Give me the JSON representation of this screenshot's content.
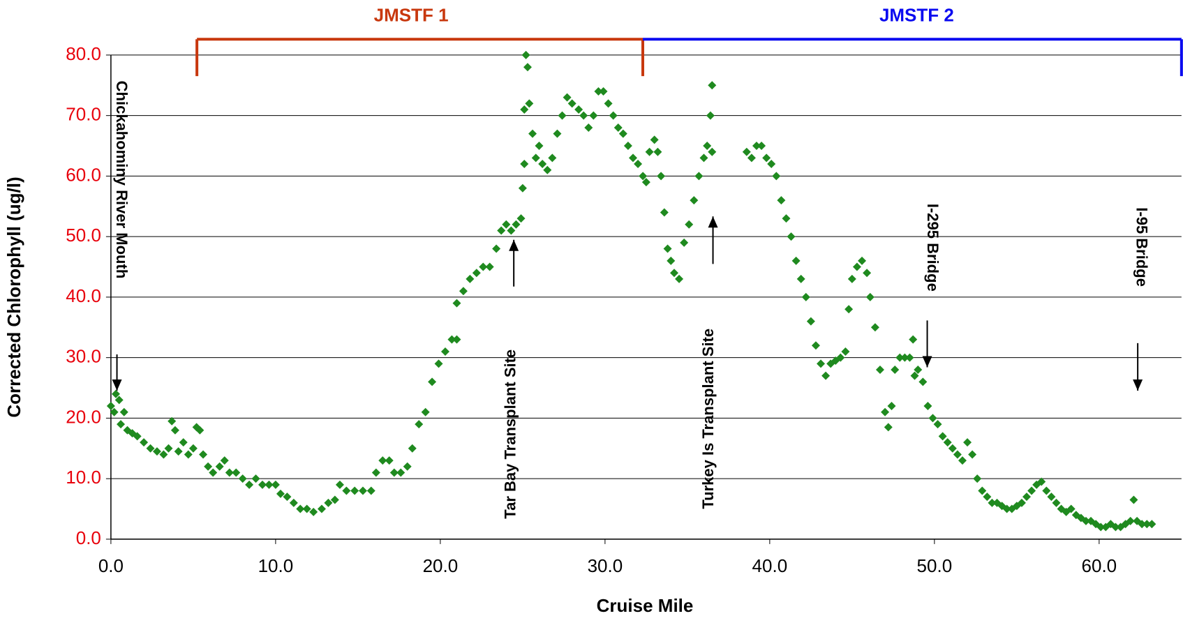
{
  "chart_data": {
    "type": "scatter",
    "xlabel": "Cruise Mile",
    "ylabel": "Corrected Chlorophyll (ug/l)",
    "color": "#1f8a1f",
    "xlim": [
      0,
      65
    ],
    "ylim": [
      0,
      80
    ],
    "grid": true,
    "xticks": [
      {
        "value": 0,
        "label": "0.0"
      },
      {
        "value": 10,
        "label": "10.0"
      },
      {
        "value": 20,
        "label": "20.0"
      },
      {
        "value": 30,
        "label": "30.0"
      },
      {
        "value": 40,
        "label": "40.0"
      },
      {
        "value": 50,
        "label": "50.0"
      },
      {
        "value": 60,
        "label": "60.0"
      }
    ],
    "yticks": [
      {
        "value": 0,
        "label": "0.0"
      },
      {
        "value": 10,
        "label": "10.0"
      },
      {
        "value": 20,
        "label": "20.0"
      },
      {
        "value": 30,
        "label": "30.0"
      },
      {
        "value": 40,
        "label": "40.0"
      },
      {
        "value": 50,
        "label": "50.0"
      },
      {
        "value": 60,
        "label": "60.0"
      },
      {
        "value": 70,
        "label": "70.0"
      },
      {
        "value": 80,
        "label": "80.0"
      }
    ],
    "annotations": [
      "Chickahominy River Mouth",
      "Tar Bay Transplant Site",
      "Turkey Is Transplant Site",
      "I-295 Bridge",
      "I-95 Bridge"
    ],
    "segments": [
      "JMSTF 1",
      "JMSTF 2"
    ],
    "x": [
      0.0,
      0.2,
      0.3,
      0.5,
      0.6,
      0.8,
      1.0,
      1.3,
      1.6,
      2.0,
      2.4,
      2.8,
      3.2,
      3.5,
      3.7,
      3.9,
      4.1,
      4.4,
      4.7,
      5.0,
      5.2,
      5.4,
      5.6,
      5.9,
      6.2,
      6.6,
      6.9,
      7.2,
      7.6,
      8.0,
      8.4,
      8.8,
      9.2,
      9.6,
      10.0,
      10.3,
      10.7,
      11.1,
      11.5,
      11.9,
      12.3,
      12.8,
      13.2,
      13.6,
      13.9,
      14.3,
      14.8,
      15.3,
      15.8,
      16.1,
      16.5,
      16.9,
      17.2,
      17.6,
      18.0,
      18.3,
      18.7,
      19.1,
      19.5,
      19.9,
      20.3,
      20.7,
      21.0,
      21.0,
      21.4,
      21.8,
      22.2,
      22.6,
      23.0,
      23.4,
      23.7,
      24.0,
      24.3,
      24.6,
      24.9,
      25.0,
      25.1,
      25.1,
      25.2,
      25.3,
      25.4,
      25.6,
      25.8,
      26.0,
      26.2,
      26.5,
      26.8,
      27.1,
      27.4,
      27.7,
      28.0,
      28.4,
      28.7,
      29.0,
      29.3,
      29.6,
      29.9,
      30.2,
      30.5,
      30.8,
      31.1,
      31.4,
      31.7,
      32.0,
      32.3,
      32.5,
      32.7,
      33.0,
      33.2,
      33.4,
      33.6,
      33.8,
      34.0,
      34.2,
      34.5,
      34.8,
      35.1,
      35.4,
      35.7,
      36.0,
      36.2,
      36.4,
      36.5,
      36.5,
      38.6,
      38.9,
      39.2,
      39.5,
      39.8,
      40.1,
      40.4,
      40.7,
      41.0,
      41.3,
      41.6,
      41.9,
      42.2,
      42.5,
      42.8,
      43.1,
      43.4,
      43.7,
      44.0,
      44.3,
      44.6,
      44.8,
      45.0,
      45.3,
      45.6,
      45.9,
      46.1,
      46.4,
      46.7,
      47.0,
      47.2,
      47.4,
      47.6,
      47.9,
      48.2,
      48.5,
      48.7,
      48.8,
      49.0,
      49.3,
      49.6,
      49.9,
      50.2,
      50.5,
      50.8,
      51.1,
      51.4,
      51.7,
      52.0,
      52.3,
      52.6,
      52.9,
      53.2,
      53.5,
      53.8,
      54.1,
      54.4,
      54.7,
      55.0,
      55.3,
      55.6,
      55.9,
      56.2,
      56.5,
      56.8,
      57.1,
      57.4,
      57.7,
      58.0,
      58.3,
      58.6,
      58.9,
      59.2,
      59.5,
      59.8,
      60.1,
      60.4,
      60.7,
      61.0,
      61.3,
      61.6,
      61.9,
      62.1,
      62.3,
      62.6,
      62.9,
      63.2
    ],
    "values": [
      22,
      21,
      24,
      23,
      19,
      21,
      18,
      17.5,
      17,
      16,
      15,
      14.5,
      14,
      15,
      19.5,
      18,
      14.5,
      16,
      14,
      15,
      18.5,
      18,
      14,
      12,
      11,
      12,
      13,
      11,
      11,
      10,
      9,
      10,
      9,
      9,
      9,
      7.5,
      7,
      6,
      5,
      5,
      4.5,
      5,
      6,
      6.5,
      9,
      8,
      8,
      8,
      8,
      11,
      13,
      13,
      11,
      11,
      12,
      15,
      19,
      21,
      26,
      29,
      31,
      33,
      33,
      39,
      41,
      43,
      44,
      45,
      45,
      48,
      51,
      52,
      51,
      52,
      53,
      58,
      62,
      71,
      80,
      78,
      72,
      67,
      63,
      65,
      62,
      61,
      63,
      67,
      70,
      73,
      72,
      71,
      70,
      68,
      70,
      74,
      74,
      72,
      70,
      68,
      67,
      65,
      63,
      62,
      60,
      59,
      64,
      66,
      64,
      60,
      54,
      48,
      46,
      44,
      43,
      49,
      52,
      56,
      60,
      63,
      65,
      70,
      75,
      64,
      64,
      63,
      65,
      65,
      63,
      62,
      60,
      56,
      53,
      50,
      46,
      43,
      40,
      36,
      32,
      29,
      27,
      29,
      29.5,
      30,
      31,
      38,
      43,
      45,
      46,
      44,
      40,
      35,
      28,
      21,
      18.5,
      22,
      28,
      30,
      30,
      30,
      33,
      27,
      28,
      26,
      22,
      20,
      19,
      17,
      16,
      15,
      14,
      13,
      16,
      14,
      10,
      8,
      7,
      6,
      6,
      5.5,
      5,
      5,
      5.5,
      6,
      7,
      8,
      9,
      9.5,
      8,
      7,
      6,
      5,
      4.5,
      5,
      4,
      3.5,
      3,
      3,
      2.5,
      2,
      2,
      2.5,
      2,
      2,
      2.5,
      3,
      6.5,
      3,
      2.5,
      2.5,
      2.5
    ]
  }
}
